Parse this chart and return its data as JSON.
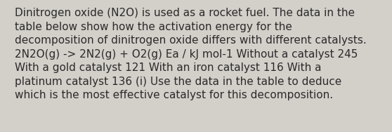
{
  "lines": [
    "Dinitrogen oxide (N2O) is used as a rocket fuel. The data in the",
    "table below show how the activation energy for the",
    "decomposition of dinitrogen oxide differs with different catalysts.",
    "2N2O(g) -> 2N2(g) + O2(g) Ea / kJ mol-1 Without a catalyst 245",
    "With a gold catalyst 121 With an iron catalyst 116 With a",
    "platinum catalyst 136 (i) Use the data in the table to deduce",
    "which is the most effective catalyst for this decomposition."
  ],
  "background_color": "#d3cfc9",
  "text_color": "#2b2b2b",
  "font_size": 11.0,
  "fig_width": 5.58,
  "fig_height": 1.88,
  "dpi": 100
}
